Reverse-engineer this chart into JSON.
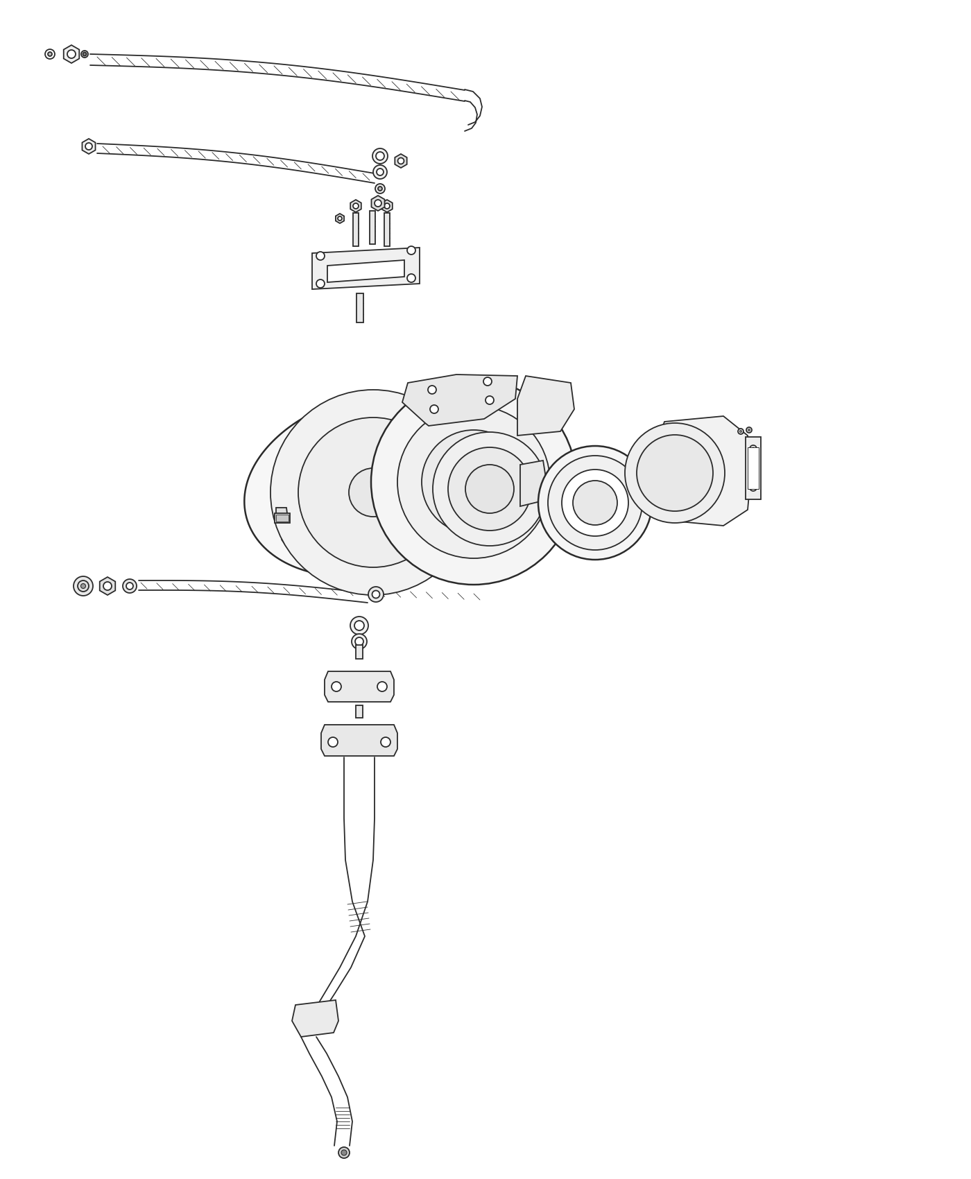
{
  "bg_color": "#ffffff",
  "line_color": "#2a2a2a",
  "line_width": 1.3,
  "thick_line": 1.8,
  "fig_width": 14.0,
  "fig_height": 17.0
}
